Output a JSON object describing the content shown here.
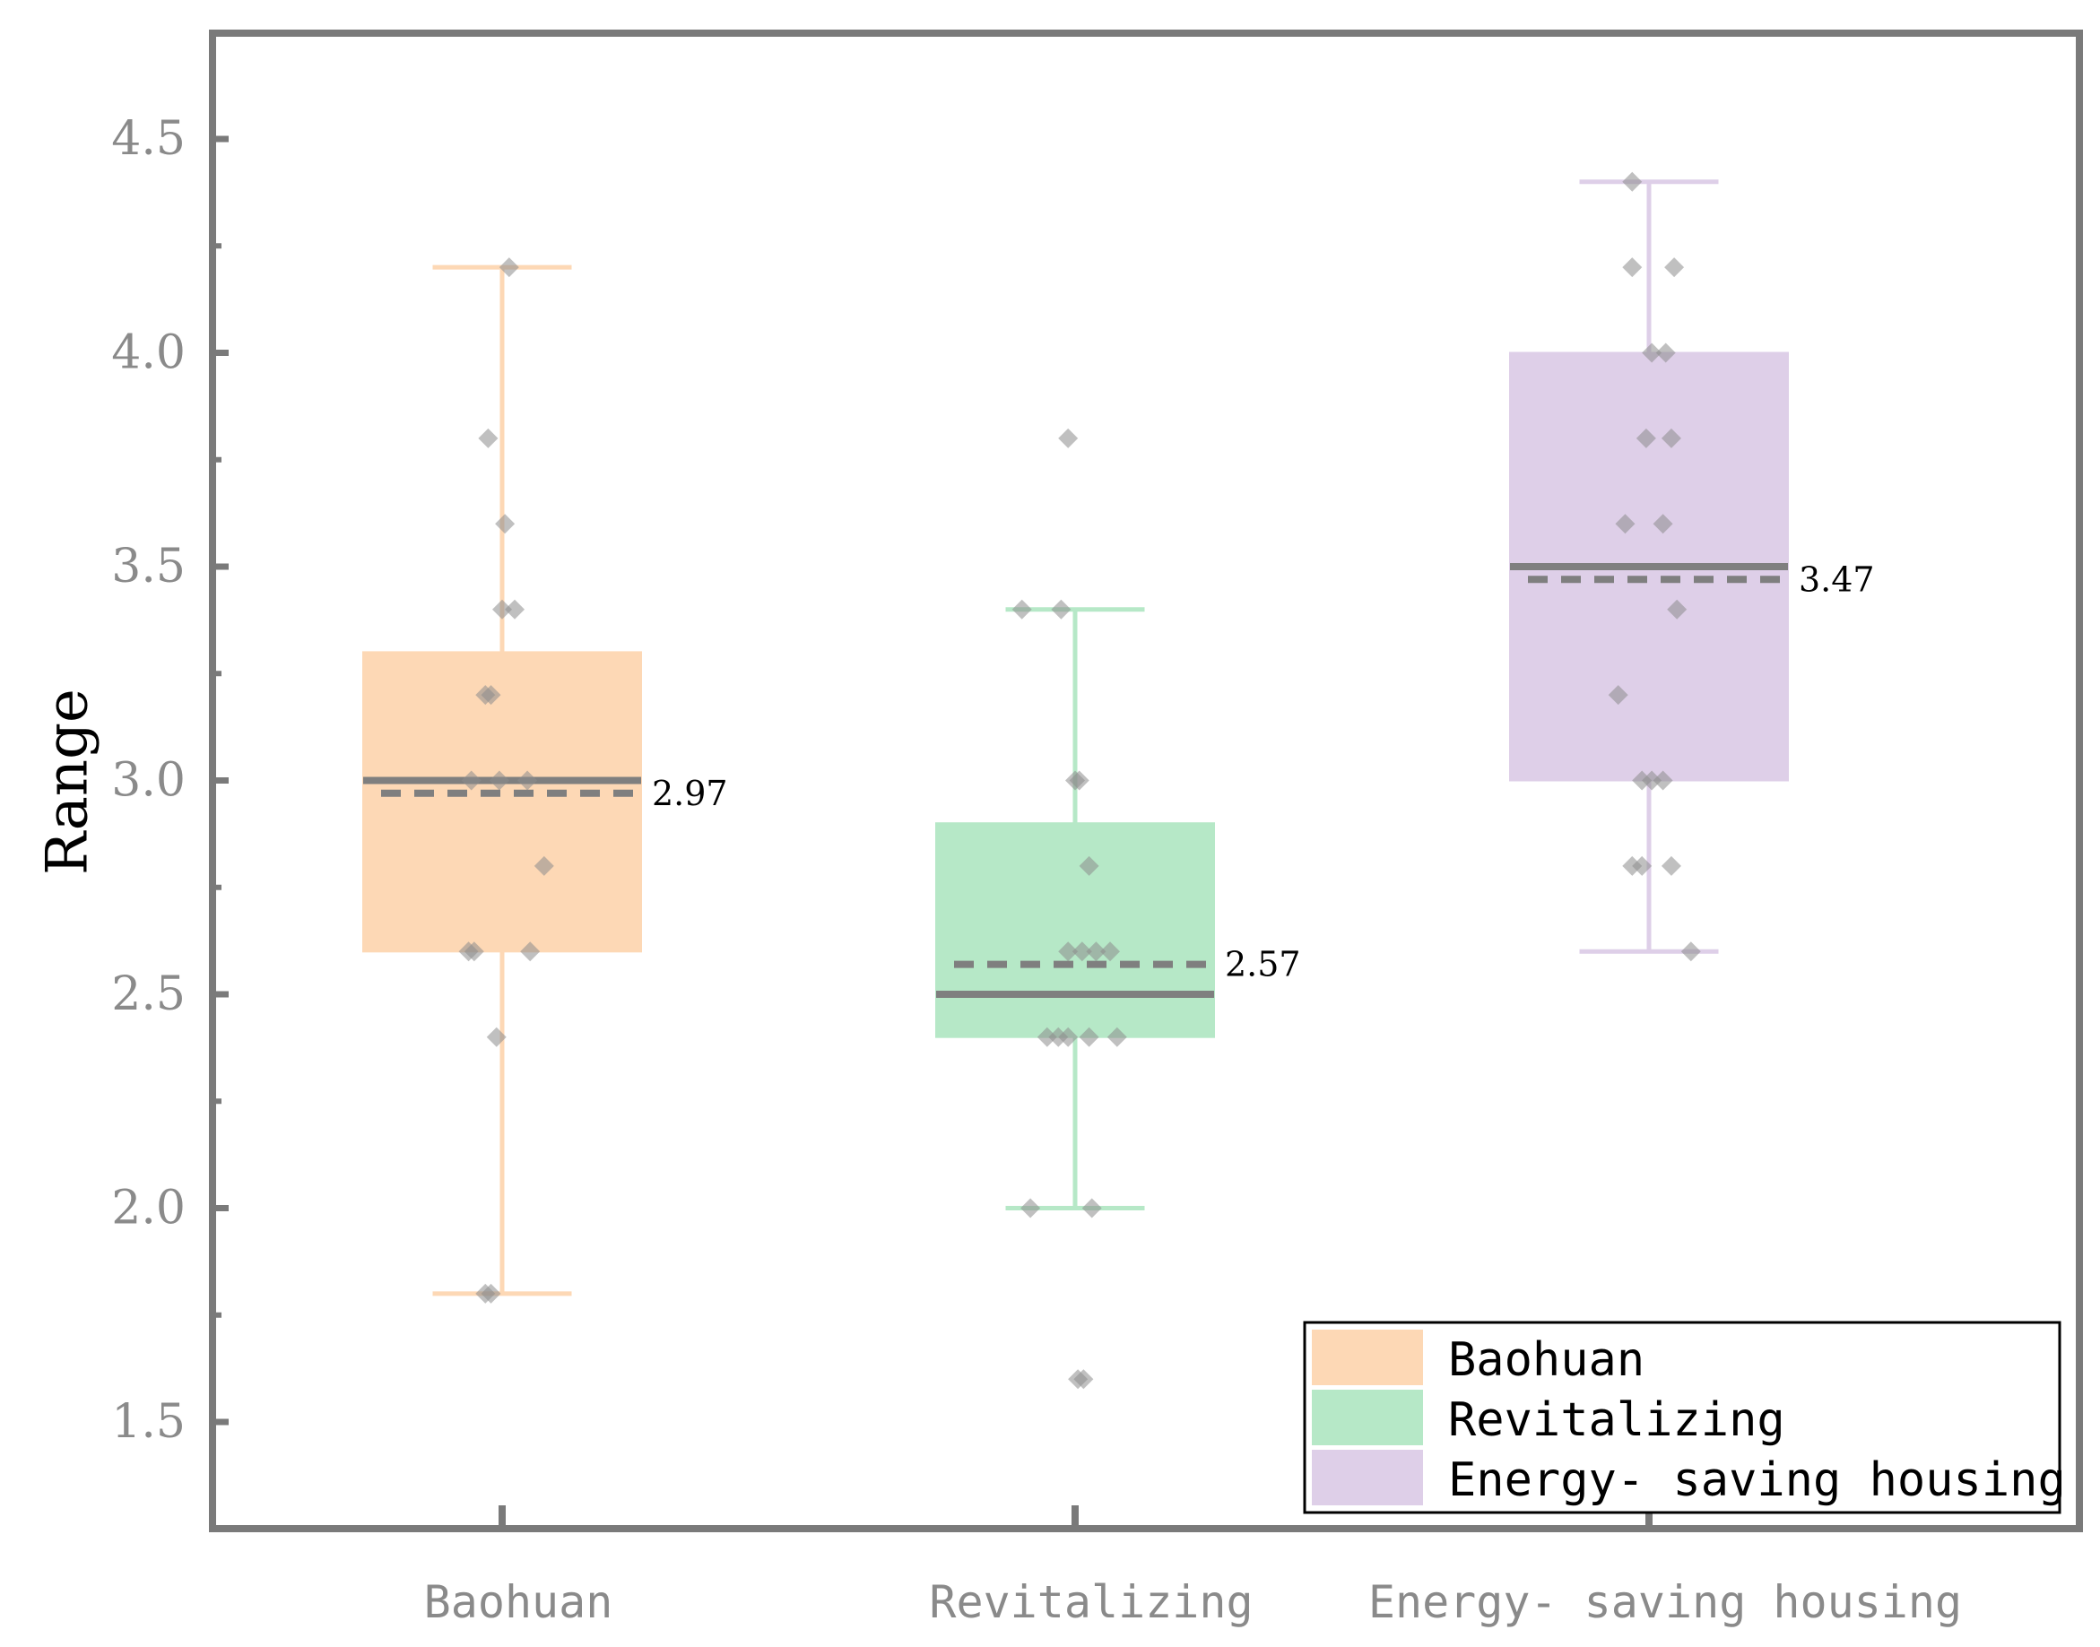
{
  "chart_data": {
    "type": "box",
    "title": "",
    "xlabel": "",
    "ylabel": "Range",
    "ylim": [
      1.3,
      4.75
    ],
    "yticks": [
      1.5,
      2.0,
      2.5,
      3.0,
      3.5,
      4.0,
      4.5
    ],
    "ytick_labels": [
      "1.5",
      "2.0",
      "2.5",
      "3.0",
      "3.5",
      "4.0",
      "4.5"
    ],
    "legend_position": "bottom-right",
    "series": [
      {
        "name": "Baohuan",
        "category_label": "Baohuan",
        "color": "#fdd8b5",
        "whisker_low": 1.8,
        "q1": 2.6,
        "median": 3.0,
        "q3": 3.3,
        "whisker_high": 4.2,
        "mean": 2.97,
        "mean_label": "2.97",
        "points": [
          {
            "y": 4.2,
            "jitter": 0.05
          },
          {
            "y": 3.8,
            "jitter": -0.1
          },
          {
            "y": 3.6,
            "jitter": 0.02
          },
          {
            "y": 3.4,
            "jitter": 0.0
          },
          {
            "y": 3.4,
            "jitter": 0.09
          },
          {
            "y": 3.2,
            "jitter": -0.12
          },
          {
            "y": 3.2,
            "jitter": -0.08
          },
          {
            "y": 3.0,
            "jitter": -0.22
          },
          {
            "y": 3.0,
            "jitter": -0.02
          },
          {
            "y": 3.0,
            "jitter": 0.18
          },
          {
            "y": 2.8,
            "jitter": 0.3
          },
          {
            "y": 2.6,
            "jitter": -0.2
          },
          {
            "y": 2.6,
            "jitter": -0.24
          },
          {
            "y": 2.6,
            "jitter": 0.2
          },
          {
            "y": 2.4,
            "jitter": -0.04
          },
          {
            "y": 1.8,
            "jitter": -0.08
          },
          {
            "y": 1.8,
            "jitter": -0.12
          }
        ]
      },
      {
        "name": "Revitalizing",
        "category_label": "Revitalizing",
        "color": "#b6e8c7",
        "whisker_low": 2.0,
        "q1": 2.4,
        "median": 2.5,
        "q3": 2.9,
        "whisker_high": 3.4,
        "mean": 2.57,
        "mean_label": "2.57",
        "points": [
          {
            "y": 3.8,
            "jitter": -0.05
          },
          {
            "y": 3.4,
            "jitter": -0.38
          },
          {
            "y": 3.4,
            "jitter": -0.1
          },
          {
            "y": 3.0,
            "jitter": 0.03
          },
          {
            "y": 3.0,
            "jitter": 0.0
          },
          {
            "y": 2.8,
            "jitter": 0.1
          },
          {
            "y": 2.6,
            "jitter": -0.05
          },
          {
            "y": 2.6,
            "jitter": 0.05
          },
          {
            "y": 2.6,
            "jitter": 0.15
          },
          {
            "y": 2.6,
            "jitter": 0.25
          },
          {
            "y": 2.4,
            "jitter": -0.2
          },
          {
            "y": 2.4,
            "jitter": -0.12
          },
          {
            "y": 2.4,
            "jitter": -0.05
          },
          {
            "y": 2.4,
            "jitter": 0.1
          },
          {
            "y": 2.4,
            "jitter": 0.3
          },
          {
            "y": 2.0,
            "jitter": -0.32
          },
          {
            "y": 2.0,
            "jitter": 0.12
          },
          {
            "y": 1.6,
            "jitter": 0.02
          },
          {
            "y": 1.6,
            "jitter": 0.06
          }
        ]
      },
      {
        "name": "Energy- saving housing",
        "category_label": "Energy- saving housing",
        "color": "#decfe8",
        "whisker_low": 2.6,
        "q1": 3.0,
        "median": 3.5,
        "q3": 4.0,
        "whisker_high": 4.4,
        "mean": 3.47,
        "mean_label": "3.47",
        "points": [
          {
            "y": 4.4,
            "jitter": -0.12
          },
          {
            "y": 4.2,
            "jitter": -0.12
          },
          {
            "y": 4.2,
            "jitter": 0.18
          },
          {
            "y": 4.0,
            "jitter": 0.02
          },
          {
            "y": 4.0,
            "jitter": 0.12
          },
          {
            "y": 3.8,
            "jitter": -0.02
          },
          {
            "y": 3.8,
            "jitter": 0.16
          },
          {
            "y": 3.6,
            "jitter": -0.17
          },
          {
            "y": 3.6,
            "jitter": 0.1
          },
          {
            "y": 3.4,
            "jitter": 0.2
          },
          {
            "y": 3.2,
            "jitter": -0.22
          },
          {
            "y": 3.0,
            "jitter": -0.05
          },
          {
            "y": 3.0,
            "jitter": 0.02
          },
          {
            "y": 3.0,
            "jitter": 0.1
          },
          {
            "y": 2.8,
            "jitter": -0.12
          },
          {
            "y": 2.8,
            "jitter": -0.05
          },
          {
            "y": 2.8,
            "jitter": 0.16
          },
          {
            "y": 2.6,
            "jitter": 0.3
          }
        ]
      }
    ]
  }
}
